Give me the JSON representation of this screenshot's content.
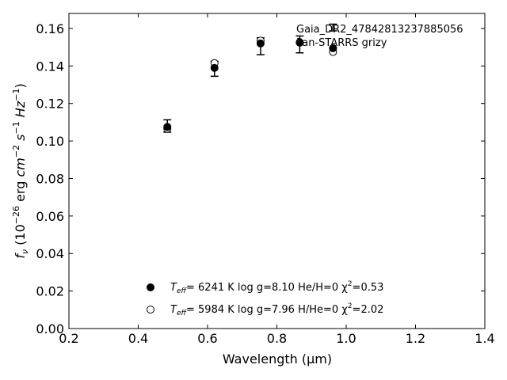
{
  "chart_data": {
    "type": "scatter",
    "xlabel": "Wavelength (μm)",
    "ylabel": "f_ν (10^-26 erg cm^-2 s^-1 Hz^-1)",
    "xlim": [
      0.2,
      1.4
    ],
    "ylim": [
      0.0,
      0.168
    ],
    "xticks": [
      0.2,
      0.4,
      0.6,
      0.8,
      1.0,
      1.2,
      1.4
    ],
    "yticks": [
      0.0,
      0.02,
      0.04,
      0.06,
      0.08,
      0.1,
      0.12,
      0.14,
      0.16
    ],
    "xtick_labels": [
      "0.2",
      "0.4",
      "0.6",
      "0.8",
      "1.0",
      "1.2",
      "1.4"
    ],
    "ytick_labels": [
      "0.00",
      "0.02",
      "0.04",
      "0.06",
      "0.08",
      "0.10",
      "0.12",
      "0.14",
      "0.16"
    ],
    "grid": false,
    "observed": {
      "x": [
        0.484,
        0.62,
        0.753,
        0.866,
        0.962
      ],
      "y": [
        0.108,
        0.1385,
        0.1505,
        0.1515,
        0.1605
      ],
      "yerr": [
        0.0033,
        0.004,
        0.0045,
        0.0045,
        0.0018
      ]
    },
    "series": [
      {
        "marker": "filled-circle",
        "x": [
          0.484,
          0.62,
          0.753,
          0.866,
          0.962
        ],
        "y": [
          0.1075,
          0.139,
          0.152,
          0.1525,
          0.1495
        ]
      },
      {
        "marker": "open-circle",
        "x": [
          0.484,
          0.62,
          0.753,
          0.866,
          0.962
        ],
        "y": [
          0.1065,
          0.1415,
          0.1535,
          0.1525,
          0.1475
        ]
      }
    ],
    "annotations": [
      "Gaia_DR2_47842813237885056",
      "Pan-STARRS grizy"
    ],
    "legend": {
      "placement": "lower-center",
      "entries": [
        {
          "marker": "filled-circle",
          "teff_label": "T",
          "teff_sub": "eff",
          "text": "=  6241 K  log g=8.10  He/H=0  χ",
          "chi_sup": "2",
          "chi_value": "=0.53"
        },
        {
          "marker": "open-circle",
          "teff_label": "T",
          "teff_sub": "eff",
          "text": "=  5984 K  log g=7.96  H/He=0  χ",
          "chi_sup": "2",
          "chi_value": "=2.02"
        }
      ]
    }
  },
  "labels": {
    "x_axis": "Wavelength (μm)",
    "y_axis_fnu": "f",
    "y_axis_nu": "ν",
    "y_axis_rest1": " (10",
    "y_axis_exp1": "−26",
    "y_axis_rest2": " erg ",
    "y_axis_cm": "cm",
    "y_axis_exp2": "−2",
    "y_axis_s": "s",
    "y_axis_exp3": "−1",
    "y_axis_hz": "Hz",
    "y_axis_exp4": "−1",
    "y_axis_close": ")"
  }
}
